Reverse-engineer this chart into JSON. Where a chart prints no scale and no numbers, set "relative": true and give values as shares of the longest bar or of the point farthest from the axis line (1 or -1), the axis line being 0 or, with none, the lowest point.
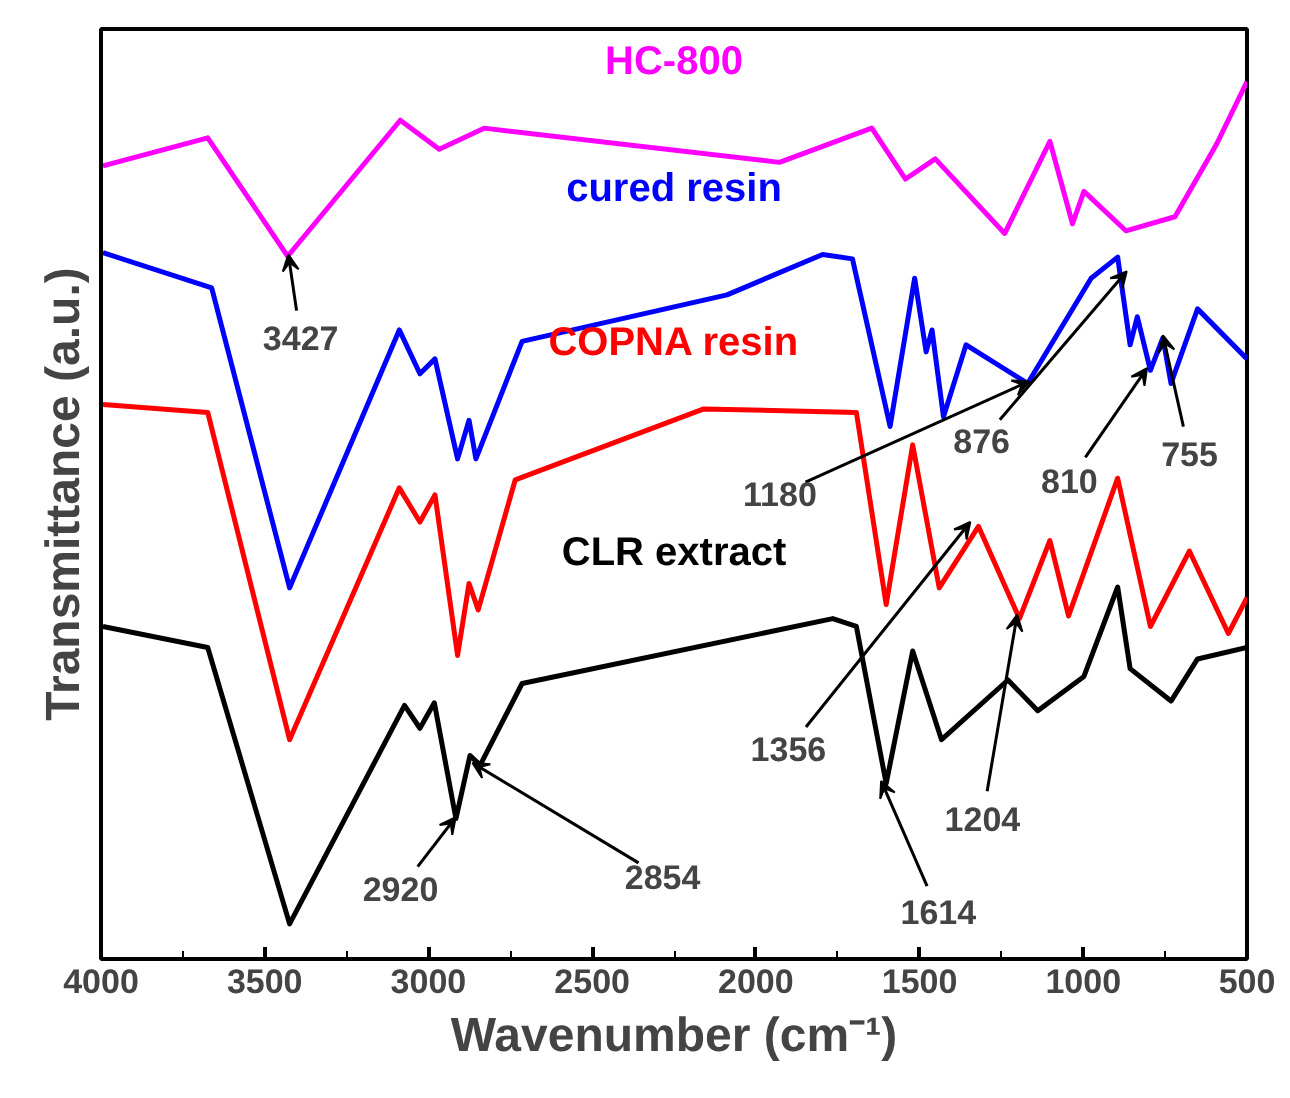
{
  "chart_data": {
    "type": "line",
    "relative": true,
    "xlabel": "Wavenumber (cm⁻¹)",
    "ylabel": "Transmittance (a.u.)",
    "xlim": [
      4000,
      500
    ],
    "xticks": [
      4000,
      3500,
      3000,
      2500,
      2000,
      1500,
      1000,
      500
    ],
    "grid": false,
    "series": [
      {
        "name": "HC-800",
        "color": "#ff00ff",
        "x": [
          3994,
          3674,
          3430,
          3086,
          2967,
          2830,
          1928,
          1646,
          1543,
          1452,
          1240,
          1102,
          1033,
          998,
          870,
          720,
          594,
          500
        ],
        "values": [
          0.904,
          0.936,
          0.801,
          0.956,
          0.923,
          0.947,
          0.908,
          0.947,
          0.889,
          0.912,
          0.827,
          0.932,
          0.838,
          0.875,
          0.83,
          0.846,
          0.928,
          1.0
        ]
      },
      {
        "name": "cured resin",
        "color": "#0000ff",
        "x": [
          3994,
          3662,
          3424,
          3089,
          3026,
          2980,
          2911,
          2876,
          2855,
          2714,
          2088,
          1796,
          1705,
          1590,
          1515,
          1480,
          1462,
          1427,
          1358,
          1170,
          976,
          895,
          857,
          835,
          795,
          757,
          732,
          651,
          500
        ],
        "values": [
          0.805,
          0.765,
          0.423,
          0.717,
          0.667,
          0.684,
          0.57,
          0.614,
          0.57,
          0.704,
          0.757,
          0.803,
          0.798,
          0.607,
          0.776,
          0.692,
          0.717,
          0.618,
          0.7,
          0.656,
          0.776,
          0.8,
          0.7,
          0.732,
          0.671,
          0.708,
          0.656,
          0.741,
          0.684
        ]
      },
      {
        "name": "COPNA resin",
        "color": "#ff0000",
        "x": [
          3994,
          3674,
          3424,
          3089,
          3026,
          2980,
          2911,
          2876,
          2848,
          2735,
          2159,
          1693,
          1602,
          1521,
          1440,
          1320,
          1195,
          1102,
          1045,
          895,
          795,
          676,
          557,
          500
        ],
        "values": [
          0.632,
          0.623,
          0.25,
          0.537,
          0.498,
          0.529,
          0.346,
          0.428,
          0.398,
          0.546,
          0.627,
          0.623,
          0.404,
          0.586,
          0.423,
          0.493,
          0.388,
          0.477,
          0.391,
          0.548,
          0.379,
          0.465,
          0.371,
          0.412
        ]
      },
      {
        "name": "CLR extract",
        "color": "#000000",
        "x": [
          3994,
          3674,
          3424,
          3073,
          3026,
          2982,
          2916,
          2873,
          2842,
          2714,
          1765,
          1693,
          1602,
          1521,
          1433,
          1230,
          1139,
          998,
          895,
          857,
          732,
          651,
          500
        ],
        "values": [
          0.379,
          0.355,
          0.04,
          0.289,
          0.263,
          0.292,
          0.16,
          0.232,
          0.221,
          0.314,
          0.388,
          0.379,
          0.2,
          0.351,
          0.25,
          0.318,
          0.283,
          0.322,
          0.424,
          0.331,
          0.294,
          0.342,
          0.355
        ]
      }
    ],
    "annotations": [
      {
        "text": "3427",
        "x": 3427,
        "y": 0.801
      },
      {
        "text": "1180",
        "x": 1180,
        "y": 0.656
      },
      {
        "text": "876",
        "x": 876,
        "y": 0.78
      },
      {
        "text": "810",
        "x": 810,
        "y": 0.671
      },
      {
        "text": "755",
        "x": 755,
        "y": 0.708
      },
      {
        "text": "1356",
        "x": 1356,
        "y": 0.493
      },
      {
        "text": "1204",
        "x": 1204,
        "y": 0.388
      },
      {
        "text": "2920",
        "x": 2920,
        "y": 0.16
      },
      {
        "text": "2854",
        "x": 2854,
        "y": 0.221
      },
      {
        "text": "1614",
        "x": 1614,
        "y": 0.2
      }
    ]
  }
}
